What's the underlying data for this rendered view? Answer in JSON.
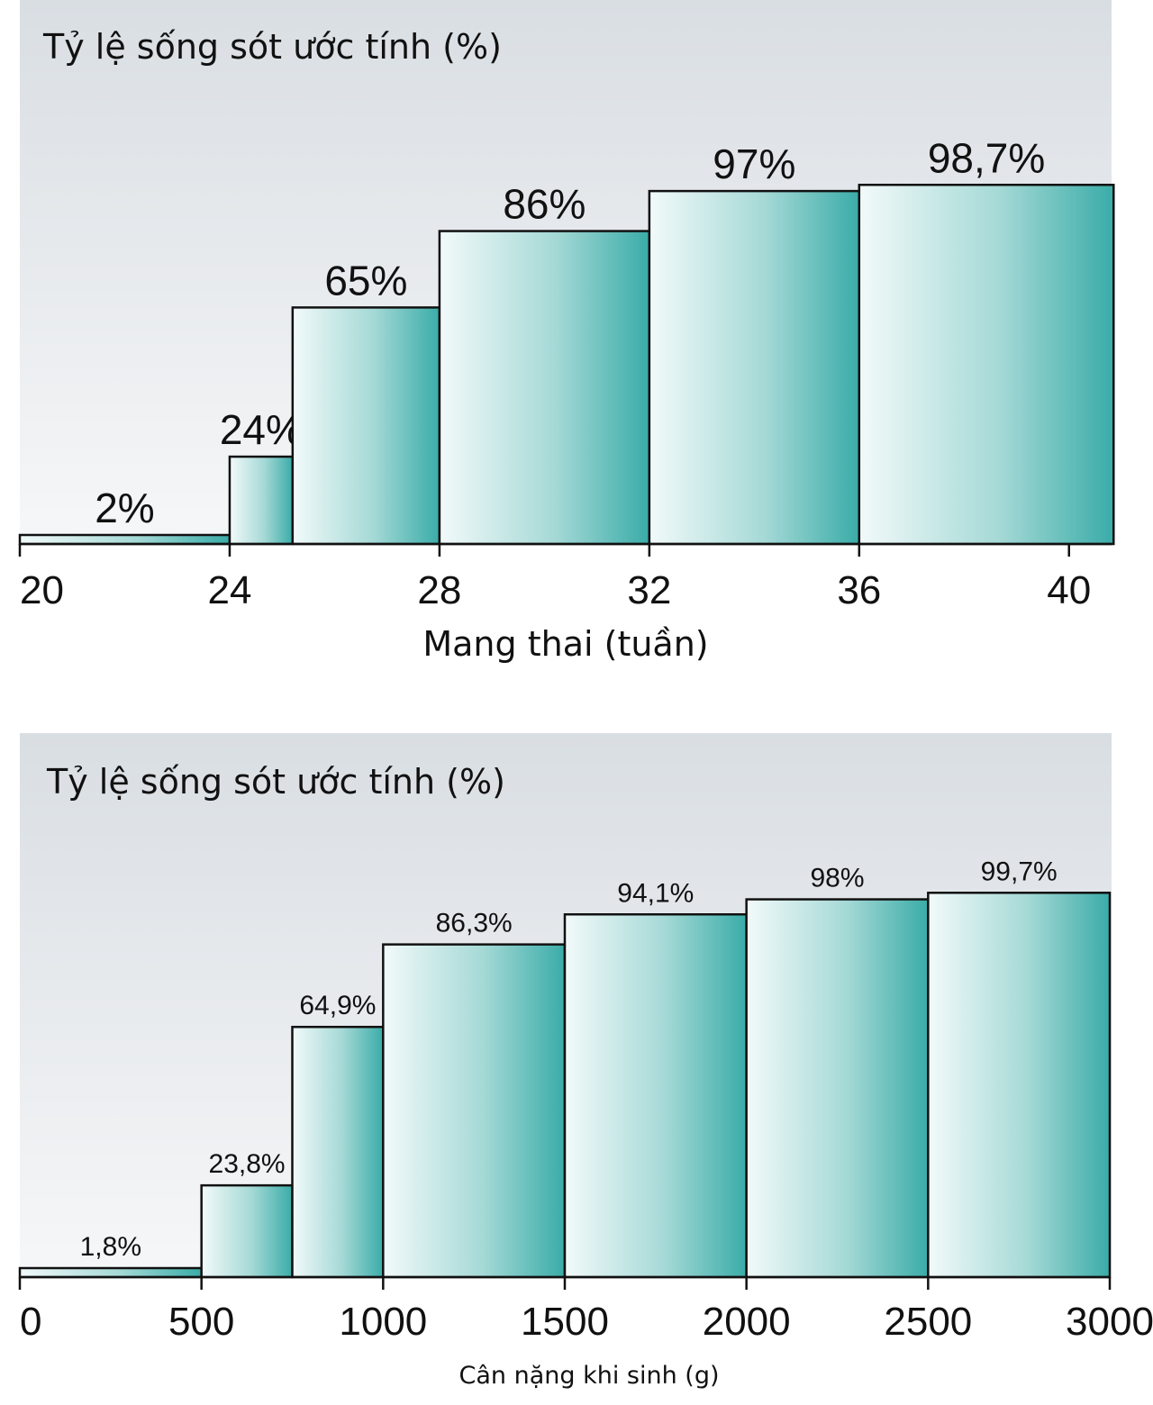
{
  "chart_data": [
    {
      "type": "bar",
      "title": "Tỷ lệ sống sót ước tính (%)",
      "xlabel": "Mang thai (tuần)",
      "ylabel": "",
      "x_ticks": [
        "20",
        "24",
        "28",
        "32",
        "36",
        "40"
      ],
      "xlim": [
        20,
        41
      ],
      "ylim": [
        0,
        100
      ],
      "bins": [
        {
          "start": 20,
          "end": 24,
          "value": 2,
          "label": "2%"
        },
        {
          "start": 24,
          "end": 25.2,
          "value": 24,
          "label": "24%"
        },
        {
          "start": 25.2,
          "end": 28,
          "value": 65,
          "label": "65%"
        },
        {
          "start": 28,
          "end": 32,
          "value": 86,
          "label": "86%"
        },
        {
          "start": 32,
          "end": 36,
          "value": 97,
          "label": "97%"
        },
        {
          "start": 36,
          "end": 40.85,
          "value": 98.7,
          "label": "98,7%"
        }
      ],
      "colors": {
        "bar_light": "#f2fafa",
        "bar_dark": "#3aaca8",
        "bg_top": "#d9dee3",
        "bg_bottom": "#f6f7f8"
      }
    },
    {
      "type": "bar",
      "title": "Tỷ lệ sống sót ước tính (%)",
      "xlabel": "Cân nặng khi sinh (g)",
      "ylabel": "",
      "x_ticks": [
        "0",
        "500",
        "1000",
        "1500",
        "2000",
        "2500",
        "3000"
      ],
      "xlim": [
        0,
        3000
      ],
      "ylim": [
        0,
        100
      ],
      "bins": [
        {
          "start": 0,
          "end": 500,
          "value": 1.8,
          "label": "1,8%"
        },
        {
          "start": 500,
          "end": 750,
          "value": 23.8,
          "label": "23,8%"
        },
        {
          "start": 750,
          "end": 1000,
          "value": 64.9,
          "label": "64,9%"
        },
        {
          "start": 1000,
          "end": 1500,
          "value": 86.3,
          "label": "86,3%"
        },
        {
          "start": 1500,
          "end": 2000,
          "value": 94.1,
          "label": "94,1%"
        },
        {
          "start": 2000,
          "end": 2500,
          "value": 98,
          "label": "98%"
        },
        {
          "start": 2500,
          "end": 3000,
          "value": 99.7,
          "label": "99,7%"
        }
      ],
      "colors": {
        "bar_light": "#f2fafa",
        "bar_dark": "#3aaca8",
        "bg_top": "#d9dee3",
        "bg_bottom": "#f6f7f8"
      }
    }
  ]
}
